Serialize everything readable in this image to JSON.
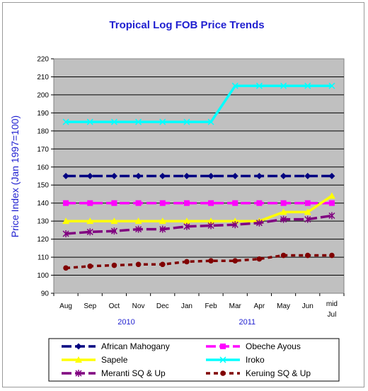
{
  "chart_data": {
    "type": "line",
    "title": "Tropical Log FOB Price Trends",
    "ylabel": "Price Index (Jan 1997=100)",
    "xlabel": "",
    "ylim": [
      90,
      220
    ],
    "yticks": [
      90,
      100,
      110,
      120,
      130,
      140,
      150,
      160,
      170,
      180,
      190,
      200,
      210,
      220
    ],
    "categories": [
      "Aug",
      "Sep",
      "Oct",
      "Nov",
      "Dec",
      "Jan",
      "Feb",
      "Mar",
      "Apr",
      "May",
      "Jun",
      "mid Jul"
    ],
    "year_labels": [
      {
        "label": "2010",
        "category_index": 2.5
      },
      {
        "label": "2011",
        "category_index": 7.5
      }
    ],
    "grid": true,
    "legend_position": "bottom",
    "series": [
      {
        "name": "African Mahogany",
        "color": "#000080",
        "dash": "long",
        "marker": "diamond",
        "values": [
          155,
          155,
          155,
          155,
          155,
          155,
          155,
          155,
          155,
          155,
          155,
          155
        ]
      },
      {
        "name": "Obeche Ayous",
        "color": "#ff00ff",
        "dash": "long",
        "marker": "square",
        "values": [
          140,
          140,
          140,
          140,
          140,
          140,
          140,
          140,
          140,
          140,
          140,
          140
        ]
      },
      {
        "name": "Sapele",
        "color": "#ffff00",
        "dash": "solid",
        "marker": "triangle",
        "values": [
          130,
          130,
          130,
          130,
          130,
          130,
          130,
          130,
          130,
          135,
          135,
          144
        ]
      },
      {
        "name": "Iroko",
        "color": "#00ffff",
        "dash": "solid",
        "marker": "x",
        "values": [
          185,
          185,
          185,
          185,
          185,
          185,
          185,
          205,
          205,
          205,
          205,
          205
        ]
      },
      {
        "name": "Meranti SQ & Up",
        "color": "#800080",
        "dash": "long",
        "marker": "star",
        "values": [
          123,
          124,
          124.5,
          125.5,
          125.5,
          127,
          127.5,
          128,
          129,
          131,
          131,
          133
        ]
      },
      {
        "name": "Keruing SQ & Up",
        "color": "#800000",
        "dash": "short",
        "marker": "circle",
        "values": [
          104,
          105,
          105.5,
          106,
          106,
          107.5,
          108,
          108,
          109,
          111,
          111,
          111
        ]
      }
    ]
  }
}
